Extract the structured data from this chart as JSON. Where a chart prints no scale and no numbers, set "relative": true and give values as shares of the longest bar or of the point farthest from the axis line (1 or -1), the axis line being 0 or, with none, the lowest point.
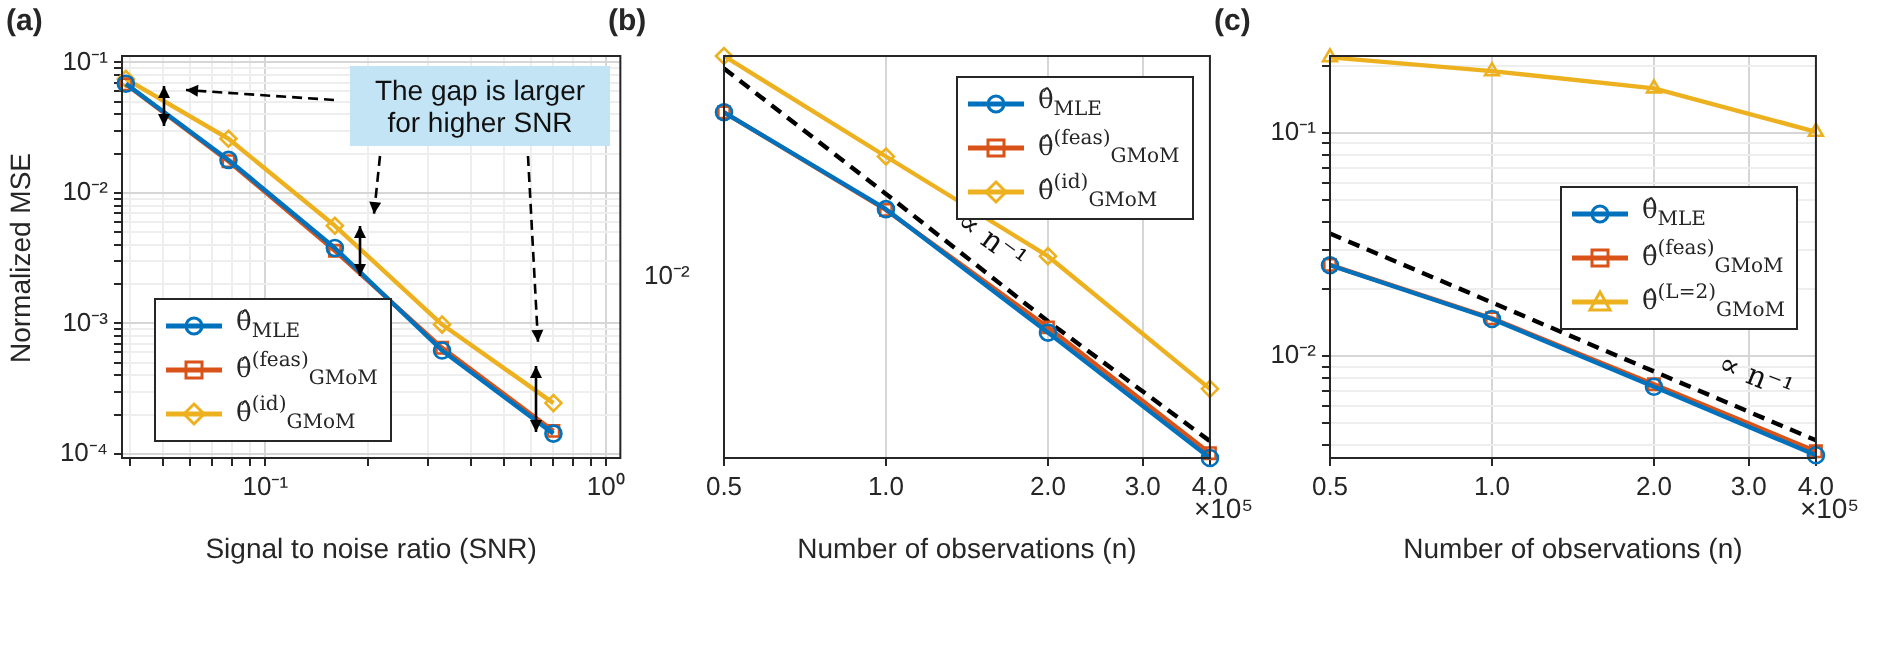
{
  "chart_data": [
    {
      "type": "line",
      "title": "(a)",
      "xlabel": "Signal to noise ratio (SNR)",
      "ylabel": "Normalized MSE",
      "log": "xy",
      "grid": true,
      "legend": "bottom left",
      "xlim": [
        0.038,
        1.1
      ],
      "ylim": [
        9.3e-05,
        0.112
      ],
      "xticks": [
        {
          "value": 0.04,
          "label": null
        },
        {
          "value": 0.05,
          "label": null
        },
        {
          "value": 0.06,
          "label": null
        },
        {
          "value": 0.07,
          "label": null
        },
        {
          "value": 0.08,
          "label": null
        },
        {
          "value": 0.09,
          "label": null
        },
        {
          "value": 0.1,
          "label": "10⁻¹"
        },
        {
          "value": 0.2,
          "label": null
        },
        {
          "value": 0.3,
          "label": null
        },
        {
          "value": 0.4,
          "label": null
        },
        {
          "value": 0.5,
          "label": null
        },
        {
          "value": 0.6,
          "label": null
        },
        {
          "value": 0.7,
          "label": null
        },
        {
          "value": 0.8,
          "label": null
        },
        {
          "value": 0.9,
          "label": null
        },
        {
          "value": 1,
          "label": "10⁰"
        }
      ],
      "yticks": [
        {
          "value": 0.0001,
          "label": "10⁻⁴"
        },
        {
          "value": 0.0002,
          "label": null
        },
        {
          "value": 0.0003,
          "label": null
        },
        {
          "value": 0.0004,
          "label": null
        },
        {
          "value": 0.0005,
          "label": null
        },
        {
          "value": 0.0006,
          "label": null
        },
        {
          "value": 0.0007,
          "label": null
        },
        {
          "value": 0.0008,
          "label": null
        },
        {
          "value": 0.0009,
          "label": null
        },
        {
          "value": 0.001,
          "label": "10⁻³"
        },
        {
          "value": 0.002,
          "label": null
        },
        {
          "value": 0.003,
          "label": null
        },
        {
          "value": 0.004,
          "label": null
        },
        {
          "value": 0.005,
          "label": null
        },
        {
          "value": 0.006,
          "label": null
        },
        {
          "value": 0.007,
          "label": null
        },
        {
          "value": 0.008,
          "label": null
        },
        {
          "value": 0.009,
          "label": null
        },
        {
          "value": 0.01,
          "label": "10⁻²"
        },
        {
          "value": 0.02,
          "label": null
        },
        {
          "value": 0.03,
          "label": null
        },
        {
          "value": 0.04,
          "label": null
        },
        {
          "value": 0.05,
          "label": null
        },
        {
          "value": 0.06,
          "label": null
        },
        {
          "value": 0.07,
          "label": null
        },
        {
          "value": 0.08,
          "label": null
        },
        {
          "value": 0.09,
          "label": null
        },
        {
          "value": 0.1,
          "label": "10⁻¹"
        }
      ],
      "x": [
        0.039,
        0.078,
        0.16,
        0.33,
        0.7
      ],
      "series": [
        {
          "name": "θ̂$_{MLE}$",
          "color": "#0072bd",
          "marker": "circle",
          "values": [
            0.0687,
            0.0179,
            0.00378,
            0.00062,
            0.000143
          ]
        },
        {
          "name": "θ̂$^{(feas)}$$_{GMoM}$",
          "color": "#d95319",
          "marker": "square",
          "values": [
            0.068,
            0.0175,
            0.0036,
            0.00065,
            0.00015
          ]
        },
        {
          "name": "θ̂$^{(id)}$$_{GMoM}$",
          "color": "#edb120",
          "marker": "diamond",
          "values": [
            0.0747,
            0.026,
            0.0056,
            0.00098,
            0.000245
          ]
        }
      ],
      "annotations": [
        "The gap is larger for higher SNR"
      ]
    },
    {
      "type": "line",
      "title": "(b)",
      "xlabel": "Number of observations (n)",
      "log": "x",
      "grid": "x",
      "legend": "top right",
      "relative": true,
      "xlim": [
        0.5,
        4
      ],
      "xticks": [
        0.5,
        {
          "value": 1,
          "label": "1.0"
        },
        {
          "value": 2,
          "label": "2.0"
        },
        {
          "value": 3,
          "label": "3.0"
        },
        {
          "value": 4,
          "label": "4.0"
        }
      ],
      "x": [
        0.5,
        1,
        2,
        4
      ],
      "series": [
        {
          "name": "θ̂$_{MLE}$",
          "color": "#0072bd",
          "marker": "circle",
          "values": [
            0.86,
            0.619,
            0.312,
            0
          ]
        },
        {
          "name": "θ̂$^{(feas)}$$_{GMoM}$",
          "color": "#d95319",
          "marker": "square",
          "values": [
            0.86,
            0.617,
            0.325,
            0.012
          ]
        },
        {
          "name": "θ̂$^{(id)}$$_{GMoM}$",
          "color": "#edb120",
          "marker": "diamond",
          "values": [
            1,
            0.75,
            0.502,
            0.172
          ]
        },
        {
          "type": "line",
          "color": "#000000",
          "marker": "none",
          "line_style": "dashed",
          "values": [
            0.969,
            0.657,
            0.34,
            0.042
          ]
        }
      ],
      "annotations": [
        "×10⁵",
        "∝ n⁻¹",
        "10⁻²"
      ]
    },
    {
      "type": "line",
      "title": "(c)",
      "xlabel": "Number of observations (n)",
      "log": "xy",
      "grid": true,
      "legend": "right",
      "xlim": [
        0.5,
        4
      ],
      "ylim": [
        0.0035,
        0.222
      ],
      "xticks": [
        0.5,
        {
          "value": 1,
          "label": "1.0"
        },
        {
          "value": 2,
          "label": "2.0"
        },
        {
          "value": 3,
          "label": "3.0"
        },
        {
          "value": 4,
          "label": "4.0"
        }
      ],
      "yticks": [
        {
          "value": 0.004,
          "label": null
        },
        {
          "value": 0.005,
          "label": null
        },
        {
          "value": 0.006,
          "label": null
        },
        {
          "value": 0.007,
          "label": null
        },
        {
          "value": 0.008,
          "label": null
        },
        {
          "value": 0.009,
          "label": null
        },
        {
          "value": 0.01,
          "label": "10⁻²"
        },
        {
          "value": 0.02,
          "label": null
        },
        {
          "value": 0.03,
          "label": null
        },
        {
          "value": 0.04,
          "label": null
        },
        {
          "value": 0.05,
          "label": null
        },
        {
          "value": 0.06,
          "label": null
        },
        {
          "value": 0.07,
          "label": null
        },
        {
          "value": 0.08,
          "label": null
        },
        {
          "value": 0.09,
          "label": null
        },
        {
          "value": 0.1,
          "label": "10⁻¹"
        },
        {
          "value": 0.2,
          "label": null
        }
      ],
      "x": [
        0.5,
        1,
        2,
        4
      ],
      "series": [
        {
          "name": "θ̂$_{MLE}$",
          "color": "#0072bd",
          "marker": "circle",
          "values": [
            0.0256,
            0.0147,
            0.0073,
            0.0036
          ]
        },
        {
          "name": "θ̂$^{(feas)}$$_{GMoM}$",
          "color": "#d95319",
          "marker": "square",
          "values": [
            0.0257,
            0.0148,
            0.0075,
            0.00375
          ]
        },
        {
          "name": "θ̂$^{(L=2)}$$_{GMoM}$",
          "color": "#edb120",
          "marker": "triangle",
          "values": [
            0.219,
            0.19,
            0.159,
            0.1015
          ]
        },
        {
          "type": "line",
          "color": "#000000",
          "marker": "none",
          "line_style": "dashed",
          "x": [
            0.5,
            4
          ],
          "values": [
            0.0355,
            0.0042
          ]
        }
      ],
      "annotations": [
        "×10⁵",
        "∝ n⁻¹"
      ]
    }
  ]
}
